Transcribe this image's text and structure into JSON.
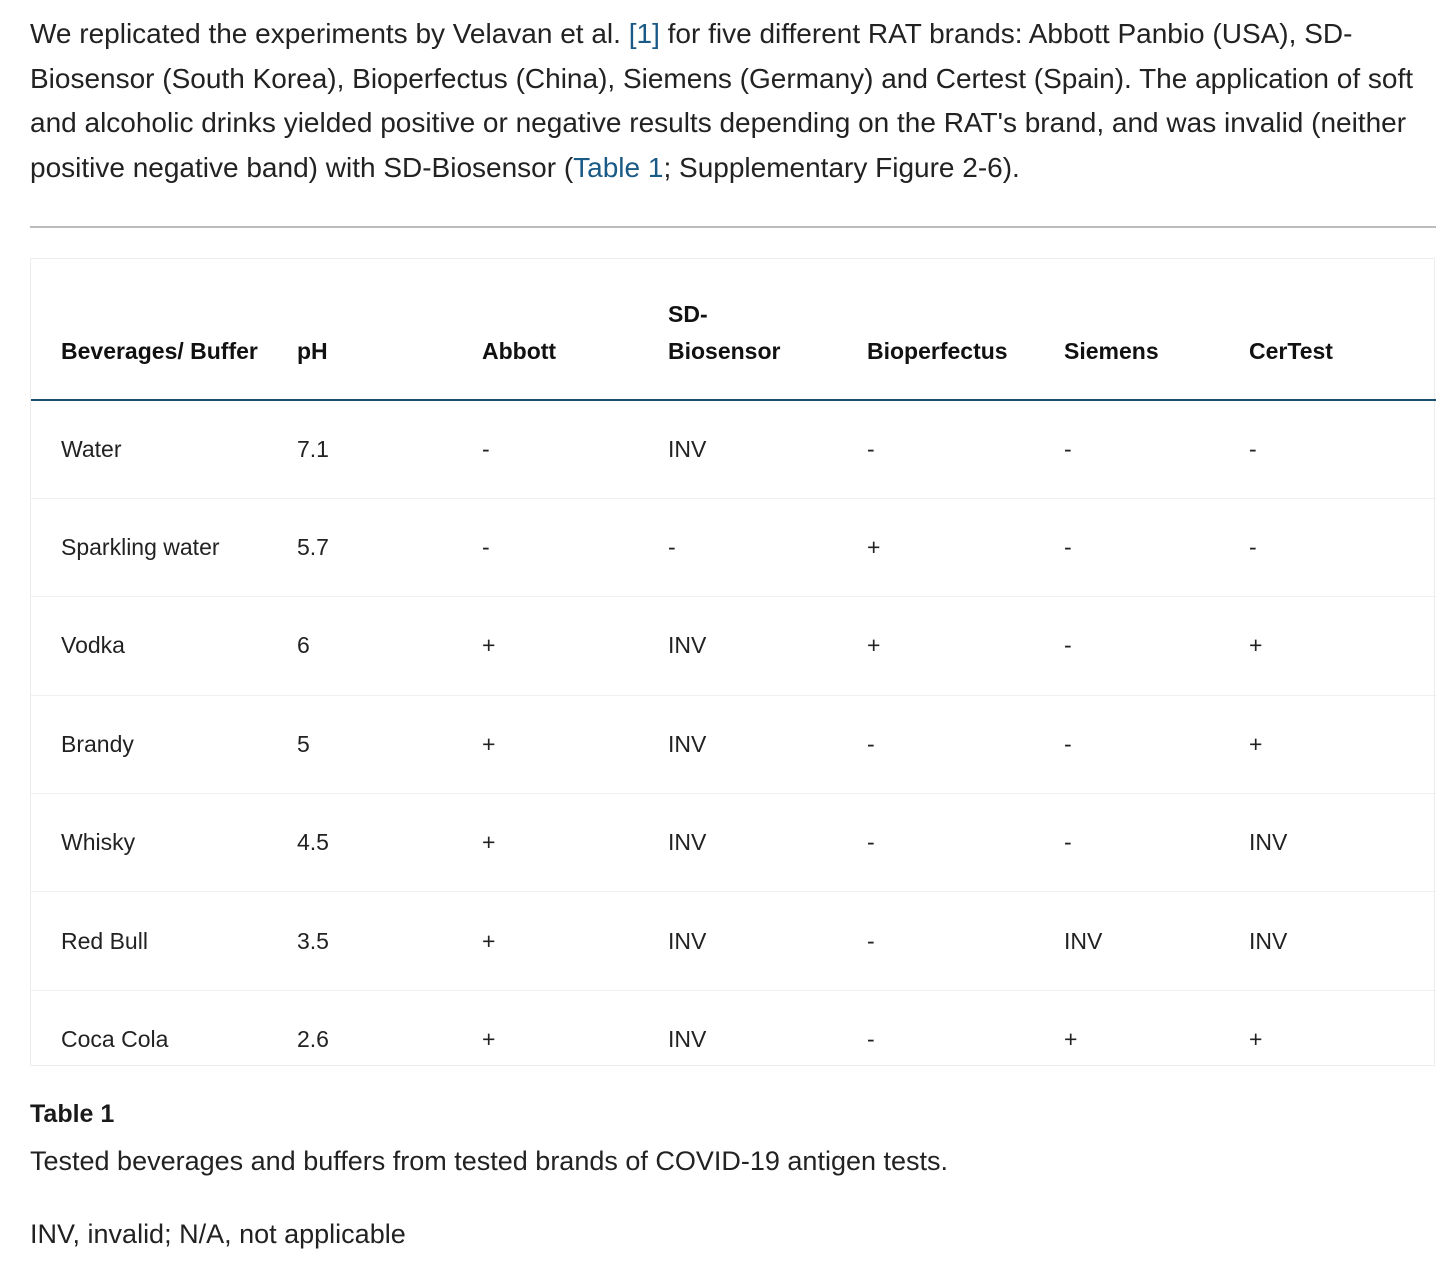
{
  "intro": {
    "part1": "We replicated the experiments by Velavan et al. ",
    "ref_link": "[1]",
    "part2": " for five different RAT brands: Abbott Panbio (USA), SD-Biosensor (South Korea), Bioperfectus (China), Siemens (Germany) and Certest (Spain). The application of soft and alcoholic drinks yielded positive or negative results depending on the RAT's brand, and was invalid (neither positive negative band) with SD-Biosensor (",
    "table_link": "Table 1",
    "part3": "; Supplementary Figure 2-6)."
  },
  "table": {
    "headers": [
      "Beverages/ Buffer",
      "pH",
      "Abbott",
      "SD-\nBiosensor",
      "Bioperfectus",
      "Siemens",
      "CerTest"
    ],
    "rows": [
      [
        "Water",
        "7.1",
        "-",
        "INV",
        "-",
        "-",
        "-"
      ],
      [
        "Sparkling water",
        "5.7",
        "-",
        "-",
        "+",
        "-",
        "-"
      ],
      [
        "Vodka",
        "6",
        "+",
        "INV",
        "+",
        "-",
        "+"
      ],
      [
        "Brandy",
        "5",
        "+",
        "INV",
        "-",
        "-",
        "+"
      ],
      [
        "Whisky",
        "4.5",
        "+",
        "INV",
        "-",
        "-",
        "INV"
      ],
      [
        "Red Bull",
        "3.5",
        "+",
        "INV",
        "-",
        "INV",
        "INV"
      ],
      [
        "Coca Cola",
        "2.6",
        "+",
        "INV",
        "-",
        "+",
        "+"
      ]
    ]
  },
  "caption": {
    "title": "Table 1",
    "text": "Tested beverages and buffers from tested brands of COVID-19 antigen tests.",
    "footnote": "INV, invalid; N/A, not applicable"
  },
  "colors": {
    "link": "#1a5a86",
    "header_rule": "#1e4f70"
  }
}
